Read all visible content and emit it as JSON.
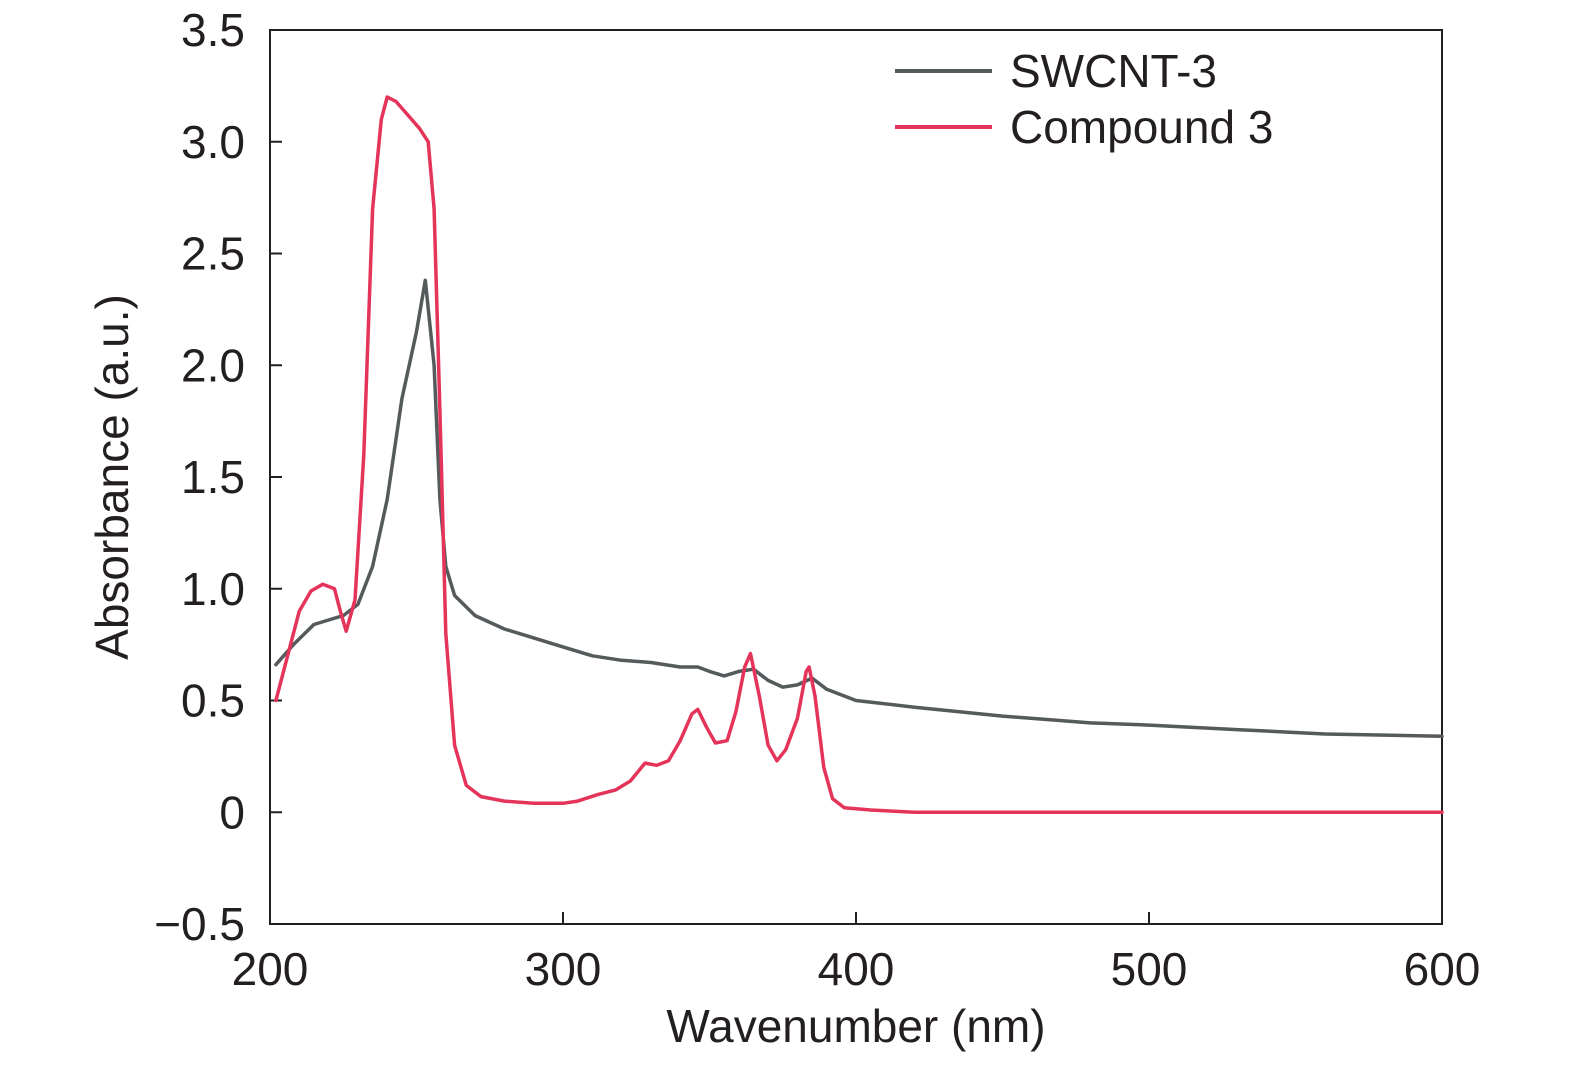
{
  "chart_data": {
    "type": "line",
    "title": "",
    "xlabel": "Wavenumber (nm)",
    "ylabel": "Absorbance (a.u.)",
    "xlim": [
      200,
      600
    ],
    "ylim": [
      -0.5,
      3.5
    ],
    "x_ticks": [
      200,
      300,
      400,
      500,
      600
    ],
    "x_tick_labels": [
      "200",
      "300",
      "400",
      "500",
      "600"
    ],
    "y_ticks": [
      -0.5,
      0,
      0.5,
      1.0,
      1.5,
      2.0,
      2.5,
      3.0,
      3.5
    ],
    "y_tick_labels": [
      "−0.5",
      "0",
      "0.5",
      "1.0",
      "1.5",
      "2.0",
      "2.5",
      "3.0",
      "3.5"
    ],
    "grid": false,
    "legend_position": "top-right",
    "series": [
      {
        "name": "SWCNT-3",
        "color": "#555a5c",
        "points": [
          [
            202,
            0.66
          ],
          [
            208,
            0.75
          ],
          [
            215,
            0.84
          ],
          [
            220,
            0.86
          ],
          [
            225,
            0.88
          ],
          [
            230,
            0.93
          ],
          [
            235,
            1.1
          ],
          [
            240,
            1.4
          ],
          [
            245,
            1.85
          ],
          [
            250,
            2.15
          ],
          [
            253,
            2.38
          ],
          [
            256,
            2.0
          ],
          [
            258,
            1.4
          ],
          [
            260,
            1.1
          ],
          [
            263,
            0.97
          ],
          [
            270,
            0.88
          ],
          [
            280,
            0.82
          ],
          [
            290,
            0.78
          ],
          [
            300,
            0.74
          ],
          [
            310,
            0.7
          ],
          [
            320,
            0.68
          ],
          [
            330,
            0.67
          ],
          [
            340,
            0.65
          ],
          [
            346,
            0.65
          ],
          [
            350,
            0.63
          ],
          [
            355,
            0.61
          ],
          [
            360,
            0.63
          ],
          [
            365,
            0.64
          ],
          [
            370,
            0.59
          ],
          [
            375,
            0.56
          ],
          [
            380,
            0.57
          ],
          [
            385,
            0.6
          ],
          [
            390,
            0.55
          ],
          [
            400,
            0.5
          ],
          [
            420,
            0.47
          ],
          [
            450,
            0.43
          ],
          [
            480,
            0.4
          ],
          [
            500,
            0.39
          ],
          [
            530,
            0.37
          ],
          [
            560,
            0.35
          ],
          [
            600,
            0.34
          ]
        ]
      },
      {
        "name": "Compound 3",
        "color": "#e5345a",
        "points": [
          [
            202,
            0.5
          ],
          [
            206,
            0.7
          ],
          [
            210,
            0.9
          ],
          [
            214,
            0.99
          ],
          [
            218,
            1.02
          ],
          [
            222,
            1.0
          ],
          [
            224,
            0.9
          ],
          [
            226,
            0.81
          ],
          [
            229,
            0.95
          ],
          [
            232,
            1.6
          ],
          [
            235,
            2.7
          ],
          [
            238,
            3.1
          ],
          [
            240,
            3.2
          ],
          [
            243,
            3.18
          ],
          [
            247,
            3.12
          ],
          [
            251,
            3.06
          ],
          [
            254,
            3.0
          ],
          [
            256,
            2.7
          ],
          [
            258,
            1.8
          ],
          [
            260,
            0.8
          ],
          [
            263,
            0.3
          ],
          [
            267,
            0.12
          ],
          [
            272,
            0.07
          ],
          [
            280,
            0.05
          ],
          [
            290,
            0.04
          ],
          [
            300,
            0.04
          ],
          [
            305,
            0.05
          ],
          [
            312,
            0.08
          ],
          [
            318,
            0.1
          ],
          [
            323,
            0.14
          ],
          [
            328,
            0.22
          ],
          [
            332,
            0.21
          ],
          [
            336,
            0.23
          ],
          [
            340,
            0.32
          ],
          [
            344,
            0.44
          ],
          [
            346,
            0.46
          ],
          [
            349,
            0.38
          ],
          [
            352,
            0.31
          ],
          [
            356,
            0.32
          ],
          [
            359,
            0.45
          ],
          [
            362,
            0.65
          ],
          [
            364,
            0.71
          ],
          [
            367,
            0.52
          ],
          [
            370,
            0.3
          ],
          [
            373,
            0.23
          ],
          [
            376,
            0.28
          ],
          [
            380,
            0.42
          ],
          [
            383,
            0.63
          ],
          [
            384,
            0.65
          ],
          [
            386,
            0.52
          ],
          [
            389,
            0.2
          ],
          [
            392,
            0.06
          ],
          [
            396,
            0.02
          ],
          [
            405,
            0.01
          ],
          [
            420,
            0.0
          ],
          [
            500,
            0.0
          ],
          [
            600,
            0.0
          ]
        ]
      }
    ]
  }
}
